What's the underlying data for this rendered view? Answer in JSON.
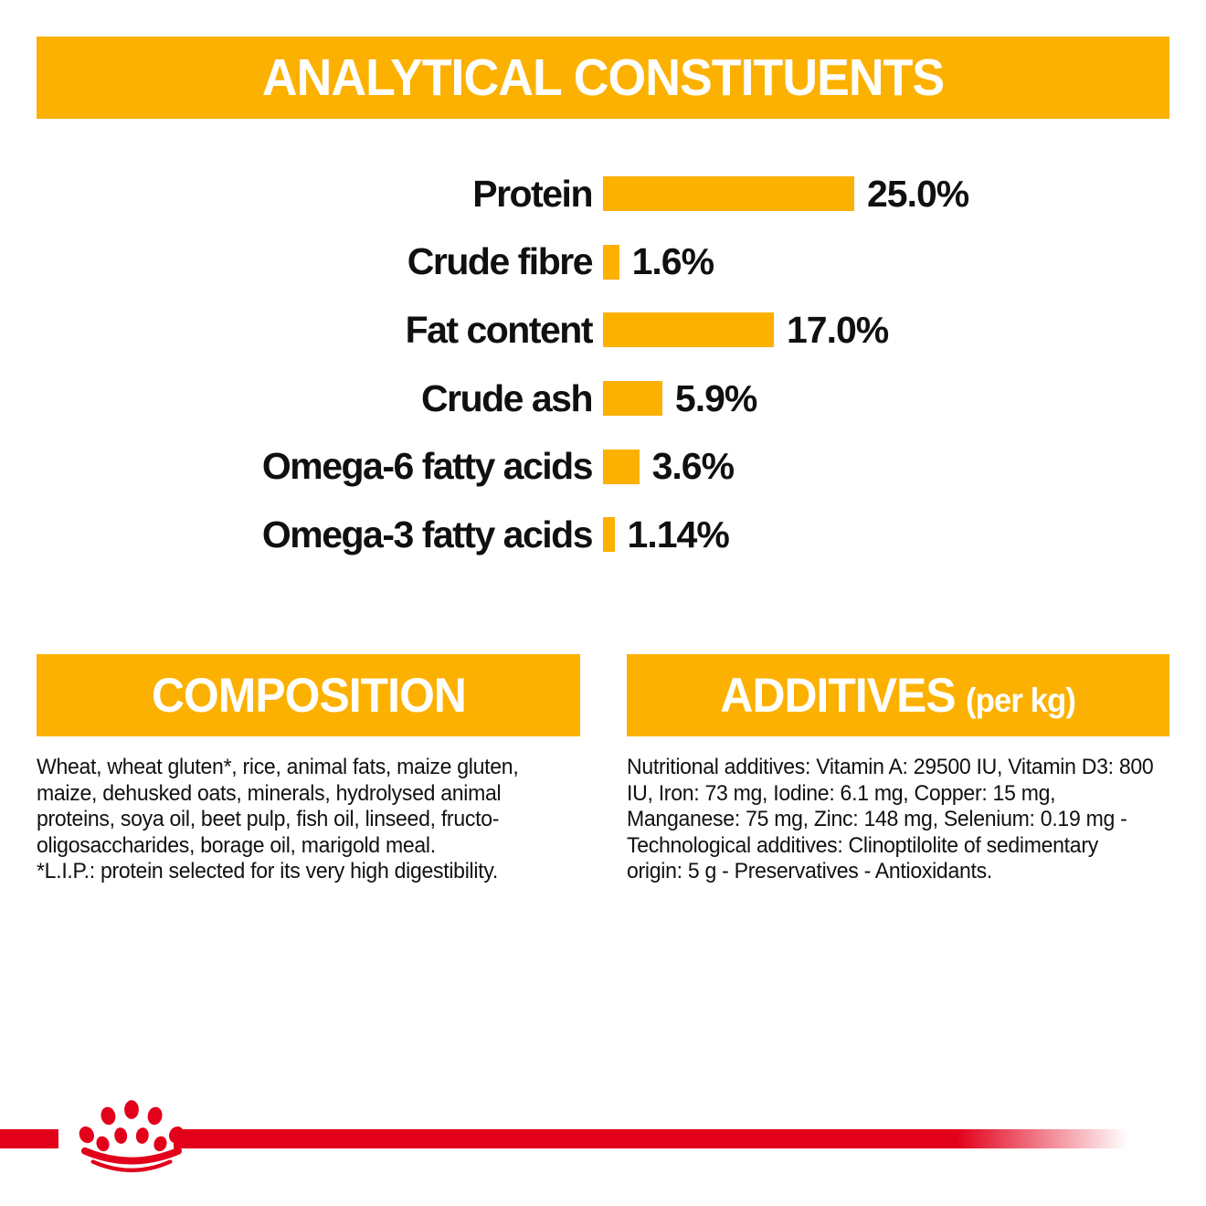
{
  "colors": {
    "brand_yellow": "#FCB100",
    "brand_red": "#E2001A",
    "text_black": "#101010",
    "banner_text_white": "#FFFFFF"
  },
  "header": {
    "title": "ANALYTICAL CONSTITUENTS"
  },
  "chart_data": {
    "type": "bar",
    "orientation": "horizontal",
    "categories": [
      "Protein",
      "Crude fibre",
      "Fat content",
      "Crude ash",
      "Omega-6 fatty acids",
      "Omega-3 fatty acids"
    ],
    "values": [
      25.0,
      1.6,
      17.0,
      5.9,
      3.6,
      1.14
    ],
    "value_labels": [
      "25.0%",
      "1.6%",
      "17.0%",
      "5.9%",
      "3.6%",
      "1.14%"
    ],
    "unit": "%",
    "xlim": [
      0,
      25
    ],
    "bar_color": "#FCB100",
    "grid": false,
    "legend": false,
    "title": "ANALYTICAL CONSTITUENTS"
  },
  "sections": {
    "composition": {
      "title": "COMPOSITION",
      "body": "Wheat, wheat gluten*, rice, animal fats, maize gluten,\nmaize, dehusked oats, minerals, hydrolysed animal\nproteins, soya oil, beet pulp, fish oil, linseed, fructo-\noligosaccharides, borage oil, marigold meal.\n*L.I.P.: protein selected for its very high digestibility."
    },
    "additives": {
      "title": "ADDITIVES",
      "title_suffix": "(per kg)",
      "body": "Nutritional additives: Vitamin A: 29500 IU, Vitamin D3: 800\nIU, Iron: 73 mg, Iodine: 6.1 mg, Copper: 15 mg,\nManganese: 75 mg, Zinc: 148 mg, Selenium: 0.19 mg -\nTechnological additives: Clinoptilolite of sedimentary\norigin: 5 g - Preservatives - Antioxidants."
    }
  },
  "footer": {
    "logo": "royal-canin-crown"
  }
}
